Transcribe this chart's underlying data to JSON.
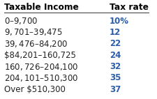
{
  "col1_header": "Taxable Income",
  "col2_header": "Tax rate",
  "rows": [
    [
      "$0–$9,700",
      "10%"
    ],
    [
      "$9,701–$39,475",
      "12"
    ],
    [
      "$39,476–$84,200",
      "22"
    ],
    [
      "$84,201–160,725",
      "24"
    ],
    [
      "$160,726–$204,100",
      "32"
    ],
    [
      "$204,101–$510,300",
      "35"
    ],
    [
      "Over $510,300",
      "37"
    ]
  ],
  "header_color": "#000000",
  "tax_rate_color": "#2E5EAA",
  "income_color": "#222222",
  "bg_color": "#FFFFFF",
  "header_line_color": "#333333",
  "font_size": 8.5,
  "header_font_size": 8.8
}
